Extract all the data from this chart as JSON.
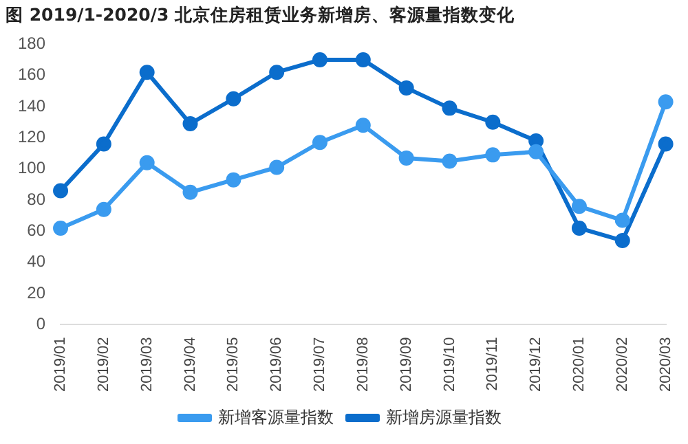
{
  "chart_data": {
    "type": "line",
    "title": "图 2019/1-2020/3 北京住房租赁业务新增房、客源量指数变化",
    "categories": [
      "2019/01",
      "2019/02",
      "2019/03",
      "2019/04",
      "2019/05",
      "2019/06",
      "2019/07",
      "2019/08",
      "2019/09",
      "2019/10",
      "2019/11",
      "2019/12",
      "2020/01",
      "2020/02",
      "2020/03"
    ],
    "series": [
      {
        "name": "新增客源量指数",
        "color": "#3a9bef",
        "values": [
          62,
          74,
          104,
          85,
          93,
          101,
          117,
          128,
          107,
          105,
          109,
          111,
          76,
          67,
          143
        ]
      },
      {
        "name": "新增房源量指数",
        "color": "#0b6dcc",
        "values": [
          86,
          116,
          162,
          129,
          145,
          162,
          170,
          170,
          152,
          139,
          130,
          118,
          62,
          54,
          116
        ]
      }
    ],
    "ylim": [
      0,
      180
    ],
    "yticks": [
      0,
      20,
      40,
      60,
      80,
      100,
      120,
      140,
      160,
      180
    ],
    "grid": false,
    "legend": "bottom",
    "marker": "circle",
    "line_style": "solid"
  }
}
